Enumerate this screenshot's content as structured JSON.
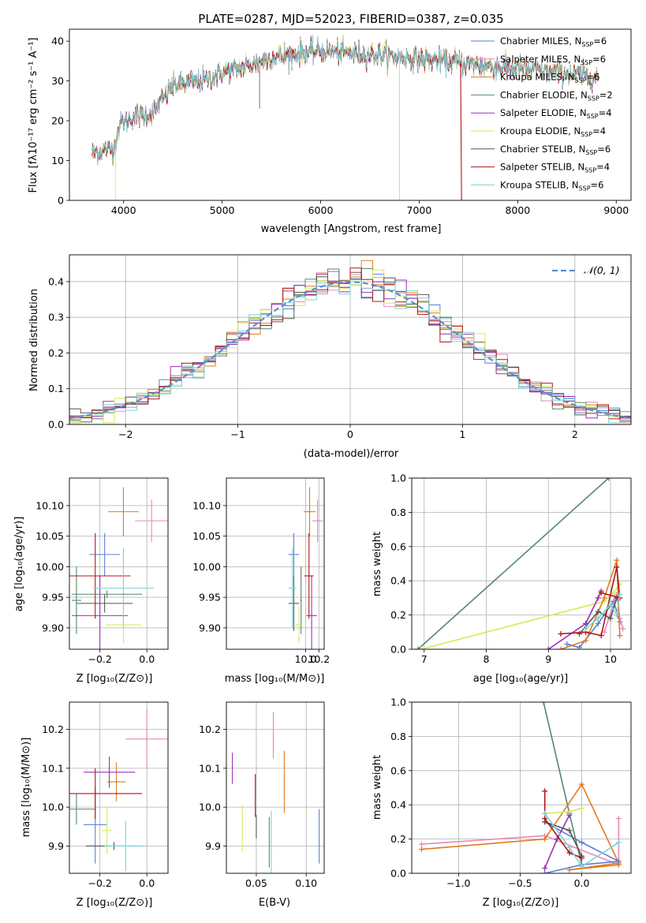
{
  "figure": {
    "colors": {
      "chabrier_miles": "#5b7fd8",
      "salpeter_miles": "#e78ab6",
      "kroupa_miles": "#e07b1f",
      "chabrier_elodie": "#55886a",
      "salpeter_elodie": "#9b2fb8",
      "kroupa_elodie": "#d6ea5a",
      "chabrier_stelib": "#555555",
      "salpeter_stelib": "#b01515",
      "kroupa_stelib": "#7fd3d6"
    },
    "legend_spectrum": [
      {
        "label": "Chabrier MILES, N",
        "sub": "SSP",
        "tail": "=6",
        "color_key": "chabrier_miles"
      },
      {
        "label": "Salpeter MILES, N",
        "sub": "SSP",
        "tail": "=6",
        "color_key": "salpeter_miles"
      },
      {
        "label": "Kroupa MILES, N",
        "sub": "SSP",
        "tail": "=6",
        "color_key": "kroupa_miles"
      },
      {
        "label": "Chabrier ELODIE, N",
        "sub": "SSP",
        "tail": "=2",
        "color_key": "chabrier_elodie"
      },
      {
        "label": "Salpeter ELODIE, N",
        "sub": "SSP",
        "tail": "=4",
        "color_key": "salpeter_elodie"
      },
      {
        "label": "Kroupa ELODIE, N",
        "sub": "SSP",
        "tail": "=4",
        "color_key": "kroupa_elodie"
      },
      {
        "label": "Chabrier STELIB, N",
        "sub": "SSP",
        "tail": "=6",
        "color_key": "chabrier_stelib"
      },
      {
        "label": "Salpeter STELIB, N",
        "sub": "SSP",
        "tail": "=4",
        "color_key": "salpeter_stelib"
      },
      {
        "label": "Kroupa STELIB, N",
        "sub": "SSP",
        "tail": "=6",
        "color_key": "kroupa_stelib"
      }
    ]
  },
  "chart_data": [
    {
      "id": "spectrum",
      "type": "line",
      "title": "PLATE=0287, MJD=52023, FIBERID=0387, z=0.035",
      "xlabel": "wavelength [Angstrom, rest frame]",
      "ylabel": "Flux [fλ10⁻¹⁷ erg cm⁻² s⁻¹ A⁻¹]",
      "xlim": [
        3450,
        9150
      ],
      "ylim": [
        0,
        43
      ],
      "xticks": [
        4000,
        5000,
        6000,
        7000,
        8000,
        9000
      ],
      "yticks": [
        0,
        10,
        20,
        30,
        40
      ],
      "wavelength_range": [
        3680,
        8820
      ],
      "continuum": [
        [
          3680,
          12
        ],
        [
          3900,
          13
        ],
        [
          3960,
          19
        ],
        [
          4100,
          21
        ],
        [
          4300,
          22
        ],
        [
          4500,
          29
        ],
        [
          4800,
          30
        ],
        [
          5000,
          32
        ],
        [
          5300,
          34
        ],
        [
          5500,
          36
        ],
        [
          5800,
          37
        ],
        [
          6000,
          37.5
        ],
        [
          6300,
          37
        ],
        [
          6600,
          36.5
        ],
        [
          7000,
          35.5
        ],
        [
          7400,
          34.5
        ],
        [
          7800,
          33.5
        ],
        [
          8200,
          32.5
        ],
        [
          8600,
          31.5
        ],
        [
          8820,
          31
        ]
      ],
      "legend_position": "upper right"
    },
    {
      "id": "residuals",
      "type": "histogram",
      "xlabel": "(data-model)/error",
      "ylabel": "Normed distribution",
      "xlim": [
        -2.5,
        2.5
      ],
      "ylim": [
        0,
        0.475
      ],
      "xticks": [
        -2,
        -1,
        0,
        1,
        2
      ],
      "yticks": [
        0,
        0.1,
        0.2,
        0.3,
        0.4
      ],
      "bin_width": 0.1,
      "reference_curve": {
        "name": "𝒩(0, 1)",
        "mean": 0,
        "sigma": 1
      },
      "grid": true,
      "legend_position": "upper right"
    },
    {
      "id": "age_vs_Z",
      "type": "errorbar",
      "xlabel": "Z [log₁₀(Z/Z⊙)]",
      "ylabel": "age  [log₁₀(age/yr)]",
      "xlim": [
        -0.33,
        0.09
      ],
      "ylim": [
        9.865,
        10.145
      ],
      "xticks": [
        -0.2,
        0.0
      ],
      "yticks": [
        9.9,
        9.95,
        10.0,
        10.05,
        10.1
      ],
      "grid": true,
      "points": [
        {
          "key": "chabrier_miles",
          "x": -0.18,
          "y": 10.02,
          "ex": 0.065,
          "ey": 0.035
        },
        {
          "key": "salpeter_miles",
          "x": 0.02,
          "y": 10.075,
          "ex": 0.07,
          "ey": 0.035
        },
        {
          "key": "kroupa_miles",
          "x": -0.1,
          "y": 10.09,
          "ex": 0.065,
          "ey": 0.04
        },
        {
          "key": "chabrier_elodie",
          "x": -0.3,
          "y": 9.945,
          "ex": 0.02,
          "ey": 0.055
        },
        {
          "key": "salpeter_elodie",
          "x": -0.2,
          "y": 9.92,
          "ex": 0.12,
          "ey": 0.065
        },
        {
          "key": "kroupa_elodie",
          "x": -0.1,
          "y": 9.905,
          "ex": 0.075,
          "ey": 0.03
        },
        {
          "key": "chabrier_stelib",
          "x": -0.18,
          "y": 9.94,
          "ex": 0.12,
          "ey": 0.015
        },
        {
          "key": "salpeter_stelib",
          "x": -0.22,
          "y": 9.985,
          "ex": 0.15,
          "ey": 0.07
        },
        {
          "key": "kroupa_stelib",
          "x": -0.1,
          "y": 9.965,
          "ex": 0.13,
          "ey": 0.065
        },
        {
          "key": "chabrier_elodie",
          "x": -0.17,
          "y": 9.955,
          "ex": 0.15,
          "ey": 0.006
        }
      ]
    },
    {
      "id": "age_vs_mass",
      "type": "errorbar",
      "xlabel": "mass [log₁₀(M/M⊙)]",
      "ylabel": "",
      "xlim": [
        8.8,
        10.28
      ],
      "ylim": [
        9.865,
        10.145
      ],
      "xticks": [
        10.0,
        10.2
      ],
      "yticks": [
        9.9,
        9.95,
        10.0,
        10.05,
        10.1
      ],
      "grid": true,
      "points": [
        {
          "key": "chabrier_miles",
          "x": 9.82,
          "y": 10.02,
          "ex": 0.08,
          "ey": 0.035
        },
        {
          "key": "salpeter_miles",
          "x": 10.18,
          "y": 10.075,
          "ex": 0.08,
          "ey": 0.035
        },
        {
          "key": "kroupa_miles",
          "x": 10.06,
          "y": 10.09,
          "ex": 0.09,
          "ey": 0.04
        },
        {
          "key": "chabrier_elodie",
          "x": 9.93,
          "y": 9.945,
          "ex": 0.012,
          "ey": 0.055
        },
        {
          "key": "salpeter_elodie",
          "x": 10.09,
          "y": 9.92,
          "ex": 0.08,
          "ey": 0.065
        },
        {
          "key": "kroupa_elodie",
          "x": 9.9,
          "y": 9.905,
          "ex": 0.05,
          "ey": 0.03
        },
        {
          "key": "chabrier_stelib",
          "x": 9.82,
          "y": 9.94,
          "ex": 0.08,
          "ey": 0.045
        },
        {
          "key": "salpeter_stelib",
          "x": 10.05,
          "y": 9.985,
          "ex": 0.07,
          "ey": 0.07
        },
        {
          "key": "kroupa_stelib",
          "x": 9.8,
          "y": 9.965,
          "ex": 0.06,
          "ey": 0.065
        }
      ]
    },
    {
      "id": "weight_vs_age",
      "type": "line",
      "xlabel": "age  [log₁₀(age/yr)]",
      "ylabel": "mass weight",
      "xlim": [
        6.8,
        10.33
      ],
      "ylim": [
        0,
        1
      ],
      "xticks": [
        7,
        8,
        9,
        10
      ],
      "yticks": [
        0,
        0.2,
        0.4,
        0.6,
        0.8,
        1.0
      ],
      "grid": true,
      "series": [
        {
          "key": "chabrier_elodie",
          "x": [
            6.9,
            9.97
          ],
          "y": [
            0.0,
            1.0
          ]
        },
        {
          "key": "kroupa_elodie",
          "x": [
            6.95,
            9.9,
            10.05,
            10.15
          ],
          "y": [
            0.0,
            0.28,
            0.33,
            0.38
          ]
        },
        {
          "key": "salpeter_elodie",
          "x": [
            9.0,
            9.6,
            9.8,
            9.85
          ],
          "y": [
            0.0,
            0.15,
            0.3,
            0.34
          ]
        },
        {
          "key": "chabrier_miles",
          "x": [
            9.3,
            9.5,
            9.8,
            10.05,
            10.15
          ],
          "y": [
            0.03,
            0.01,
            0.15,
            0.28,
            0.16
          ]
        },
        {
          "key": "salpeter_miles",
          "x": [
            9.9,
            10.1,
            10.15,
            10.2
          ],
          "y": [
            0.1,
            0.32,
            0.18,
            0.12
          ]
        },
        {
          "key": "kroupa_miles",
          "x": [
            9.2,
            9.6,
            9.9,
            10.1,
            10.15
          ],
          "y": [
            0.0,
            0.05,
            0.3,
            0.52,
            0.08
          ]
        },
        {
          "key": "chabrier_stelib",
          "x": [
            9.5,
            9.8,
            10.0,
            10.1
          ],
          "y": [
            0.09,
            0.22,
            0.18,
            0.3
          ]
        },
        {
          "key": "salpeter_stelib",
          "x": [
            9.2,
            9.6,
            9.85,
            10.1,
            10.15,
            9.85
          ],
          "y": [
            0.09,
            0.1,
            0.08,
            0.48,
            0.3,
            0.33
          ]
        },
        {
          "key": "kroupa_stelib",
          "x": [
            9.6,
            9.8,
            10.0,
            10.1,
            10.15
          ],
          "y": [
            0.12,
            0.18,
            0.26,
            0.2,
            0.32
          ]
        }
      ]
    },
    {
      "id": "mass_vs_Z",
      "type": "errorbar",
      "xlabel": "Z [log₁₀(Z/Z⊙)]",
      "ylabel": "mass [log₁₀(M/M⊙)]",
      "xlim": [
        -0.33,
        0.09
      ],
      "ylim": [
        9.83,
        10.27
      ],
      "xticks": [
        -0.2,
        0.0
      ],
      "yticks": [
        9.9,
        10.0,
        10.1,
        10.2
      ],
      "grid": true,
      "points": [
        {
          "key": "chabrier_miles",
          "x": -0.22,
          "y": 9.955,
          "ex": 0.05,
          "ey": 0.1
        },
        {
          "key": "salpeter_miles",
          "x": 0.0,
          "y": 10.175,
          "ex": 0.09,
          "ey": 0.075
        },
        {
          "key": "kroupa_miles",
          "x": -0.13,
          "y": 10.065,
          "ex": 0.04,
          "ey": 0.05
        },
        {
          "key": "chabrier_elodie",
          "x": -0.3,
          "y": 9.995,
          "ex": 0.08,
          "ey": 0.04
        },
        {
          "key": "salpeter_elodie",
          "x": -0.16,
          "y": 10.09,
          "ex": 0.11,
          "ey": 0.04
        },
        {
          "key": "kroupa_elodie",
          "x": -0.17,
          "y": 9.94,
          "ex": 0.02,
          "ey": 0.06
        },
        {
          "key": "chabrier_stelib",
          "x": -0.14,
          "y": 9.9,
          "ex": 0.12,
          "ey": 0.01
        },
        {
          "key": "salpeter_stelib",
          "x": -0.22,
          "y": 10.035,
          "ex": 0.2,
          "ey": 0.065
        },
        {
          "key": "kroupa_stelib",
          "x": -0.09,
          "y": 9.9,
          "ex": 0.09,
          "ey": 0.065
        }
      ]
    },
    {
      "id": "mass_vs_EBV",
      "type": "errorbar",
      "xlabel": "E(B-V)",
      "ylabel": "",
      "xlim": [
        0.02,
        0.118
      ],
      "ylim": [
        9.83,
        10.27
      ],
      "xticks": [
        0.05,
        0.1
      ],
      "yticks": [
        9.9,
        10.0,
        10.1,
        10.2
      ],
      "grid": true,
      "points": [
        {
          "key": "chabrier_miles",
          "x": 0.113,
          "y": 9.925,
          "ex": 0.0,
          "ey": 0.07
        },
        {
          "key": "salpeter_miles",
          "x": 0.067,
          "y": 10.185,
          "ex": 0.0,
          "ey": 0.06
        },
        {
          "key": "kroupa_miles",
          "x": 0.078,
          "y": 10.065,
          "ex": 0.0,
          "ey": 0.08
        },
        {
          "key": "chabrier_elodie",
          "x": 0.063,
          "y": 9.91,
          "ex": 0.0,
          "ey": 0.065
        },
        {
          "key": "salpeter_elodie",
          "x": 0.026,
          "y": 10.1,
          "ex": 0.0,
          "ey": 0.04
        },
        {
          "key": "kroupa_elodie",
          "x": 0.036,
          "y": 9.945,
          "ex": 0.0,
          "ey": 0.06
        },
        {
          "key": "chabrier_stelib",
          "x": 0.05,
          "y": 9.95,
          "ex": 0.0,
          "ey": 0.03
        },
        {
          "key": "salpeter_stelib",
          "x": 0.049,
          "y": 10.03,
          "ex": 0.0,
          "ey": 0.055
        },
        {
          "key": "kroupa_stelib",
          "x": 0.065,
          "y": 9.905,
          "ex": 0.0,
          "ey": 0.085
        }
      ]
    },
    {
      "id": "weight_vs_Z",
      "type": "line",
      "xlabel": "Z [log₁₀(Z/Z⊙)]",
      "ylabel": "mass weight",
      "xlim": [
        -1.38,
        0.4
      ],
      "ylim": [
        0,
        1
      ],
      "xticks": [
        -1.0,
        -0.5,
        0.0
      ],
      "yticks": [
        0,
        0.2,
        0.4,
        0.6,
        0.8,
        1.0
      ],
      "grid": true,
      "series": [
        {
          "key": "chabrier_elodie",
          "x": [
            -0.31,
            -0.1,
            0.0
          ],
          "y": [
            1.0,
            0.35,
            0.05
          ]
        },
        {
          "key": "salpeter_miles",
          "x": [
            -1.3,
            -0.3,
            0.3,
            0.3
          ],
          "y": [
            0.17,
            0.22,
            0.05,
            0.32
          ]
        },
        {
          "key": "kroupa_miles",
          "x": [
            -1.3,
            -0.3,
            0.0,
            0.3,
            -0.1,
            0.3
          ],
          "y": [
            0.14,
            0.2,
            0.52,
            0.06,
            0.02,
            0.05
          ]
        },
        {
          "key": "chabrier_miles",
          "x": [
            -0.3,
            0.0,
            0.3,
            0.0,
            -0.3
          ],
          "y": [
            0.0,
            0.05,
            0.07,
            0.18,
            0.3
          ]
        },
        {
          "key": "salpeter_elodie",
          "x": [
            -0.3,
            -0.2,
            -0.1
          ],
          "y": [
            0.03,
            0.2,
            0.34
          ]
        },
        {
          "key": "kroupa_elodie",
          "x": [
            -0.3,
            -0.1,
            0.0
          ],
          "y": [
            0.35,
            0.36,
            0.38
          ]
        },
        {
          "key": "chabrier_stelib",
          "x": [
            -0.3,
            -0.1,
            0.0
          ],
          "y": [
            0.3,
            0.25,
            0.1
          ]
        },
        {
          "key": "salpeter_stelib",
          "x": [
            -0.3,
            -0.3,
            -0.1,
            0.0
          ],
          "y": [
            0.48,
            0.32,
            0.12,
            0.09
          ]
        },
        {
          "key": "kroupa_stelib",
          "x": [
            -0.3,
            -0.1,
            0.0,
            0.3
          ],
          "y": [
            0.35,
            0.15,
            0.04,
            0.18
          ]
        }
      ]
    }
  ]
}
